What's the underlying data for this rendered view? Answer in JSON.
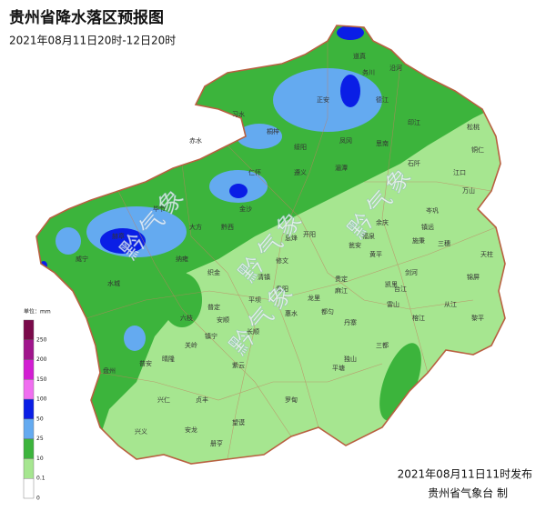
{
  "header": {
    "title": "贵州省降水落区预报图",
    "subtitle": "2021年08月11日20时-12日20时"
  },
  "legend": {
    "unit": "单位：mm",
    "levels": [
      {
        "label": "250",
        "color": "#7a0a4a"
      },
      {
        "label": "200",
        "color": "#a0158c"
      },
      {
        "label": "150",
        "color": "#d21ed2"
      },
      {
        "label": "100",
        "color": "#f06ef0"
      },
      {
        "label": "50",
        "color": "#0a1ee6"
      },
      {
        "label": "25",
        "color": "#64aaf0"
      },
      {
        "label": "10",
        "color": "#3cb43c"
      },
      {
        "label": "0.1",
        "color": "#a6e690"
      },
      {
        "label": "0",
        "color": "#ffffff"
      }
    ]
  },
  "watermarks": [
    "黔气象",
    "黔气象",
    "黔气象",
    "黔气象"
  ],
  "places": [
    "道真",
    "习水",
    "桐梓",
    "绥阳",
    "正安",
    "务川",
    "沿河",
    "德江",
    "印江",
    "松桃",
    "铜仁",
    "江口",
    "万山",
    "思南",
    "石阡",
    "凤冈",
    "湄潭",
    "遵义",
    "仁怀",
    "赤水",
    "金沙",
    "大方",
    "毕节",
    "黔西",
    "织金",
    "纳雍",
    "赫章",
    "威宁",
    "水城",
    "六枝",
    "普定",
    "安顺",
    "平坝",
    "清镇",
    "修文",
    "息烽",
    "开阳",
    "贵阳",
    "龙里",
    "贵定",
    "瓮安",
    "余庆",
    "施秉",
    "镇远",
    "岑巩",
    "三穗",
    "天柱",
    "锦屏",
    "黎平",
    "剑河",
    "台江",
    "雷山",
    "榕江",
    "从江",
    "凯里",
    "黄平",
    "麻江",
    "丹寨",
    "都匀",
    "三都",
    "独山",
    "平塘",
    "惠水",
    "长顺",
    "罗甸",
    "紫云",
    "关岭",
    "镇宁",
    "晴隆",
    "普安",
    "盘州",
    "兴仁",
    "贞丰",
    "望谟",
    "册亨",
    "安龙",
    "兴义",
    "福泉"
  ],
  "footer": {
    "issued": "2021年08月11日11时发布",
    "issuer": "贵州省气象台 制"
  }
}
